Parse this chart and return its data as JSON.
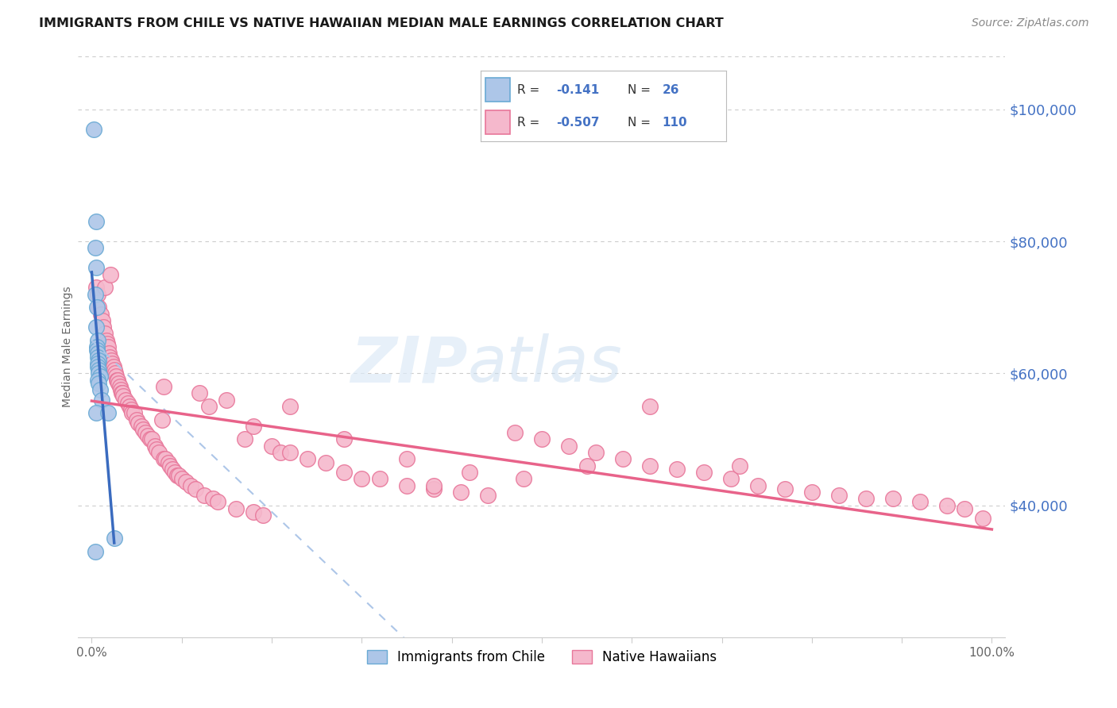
{
  "title": "IMMIGRANTS FROM CHILE VS NATIVE HAWAIIAN MEDIAN MALE EARNINGS CORRELATION CHART",
  "source": "Source: ZipAtlas.com",
  "ylabel": "Median Male Earnings",
  "yticks": [
    40000,
    60000,
    80000,
    100000
  ],
  "ytick_labels": [
    "$40,000",
    "$60,000",
    "$80,000",
    "$100,000"
  ],
  "legend_labels": [
    "Immigrants from Chile",
    "Native Hawaiians"
  ],
  "color_chile_fill": "#adc6e8",
  "color_chile_edge": "#6aaad4",
  "color_hawaii_fill": "#f5b8cc",
  "color_hawaii_edge": "#e8779a",
  "color_trendline_chile_solid": "#3a6bbf",
  "color_trendline_hawaii": "#e8638a",
  "color_trendline_chile_dashed": "#adc6e8",
  "background_color": "#ffffff",
  "chile_x": [
    0.002,
    0.005,
    0.004,
    0.005,
    0.004,
    0.006,
    0.005,
    0.007,
    0.006,
    0.006,
    0.007,
    0.007,
    0.008,
    0.007,
    0.007,
    0.008,
    0.008,
    0.009,
    0.007,
    0.008,
    0.009,
    0.011,
    0.005,
    0.018,
    0.025,
    0.004
  ],
  "chile_y": [
    97000,
    83000,
    79000,
    76000,
    72000,
    70000,
    67000,
    65000,
    64000,
    63500,
    63000,
    62500,
    62000,
    61500,
    61000,
    60500,
    60000,
    59500,
    59000,
    58500,
    57500,
    56000,
    54000,
    54000,
    35000,
    33000
  ],
  "hawaii_x": [
    0.005,
    0.007,
    0.008,
    0.01,
    0.012,
    0.013,
    0.015,
    0.015,
    0.016,
    0.017,
    0.018,
    0.019,
    0.02,
    0.021,
    0.022,
    0.023,
    0.024,
    0.025,
    0.026,
    0.027,
    0.028,
    0.029,
    0.03,
    0.031,
    0.032,
    0.033,
    0.034,
    0.035,
    0.038,
    0.04,
    0.042,
    0.044,
    0.045,
    0.047,
    0.05,
    0.052,
    0.055,
    0.057,
    0.06,
    0.062,
    0.065,
    0.067,
    0.07,
    0.072,
    0.075,
    0.078,
    0.08,
    0.082,
    0.085,
    0.087,
    0.09,
    0.092,
    0.095,
    0.097,
    0.1,
    0.105,
    0.11,
    0.115,
    0.12,
    0.125,
    0.13,
    0.135,
    0.14,
    0.15,
    0.16,
    0.17,
    0.18,
    0.19,
    0.2,
    0.21,
    0.22,
    0.24,
    0.26,
    0.28,
    0.3,
    0.32,
    0.35,
    0.38,
    0.41,
    0.44,
    0.47,
    0.5,
    0.53,
    0.56,
    0.59,
    0.62,
    0.65,
    0.68,
    0.71,
    0.74,
    0.77,
    0.8,
    0.83,
    0.86,
    0.89,
    0.92,
    0.95,
    0.97,
    0.99,
    0.22,
    0.35,
    0.42,
    0.18,
    0.28,
    0.08,
    0.55,
    0.38,
    0.48,
    0.62,
    0.72
  ],
  "hawaii_y": [
    73000,
    72000,
    70000,
    69000,
    68000,
    67000,
    73000,
    66000,
    65000,
    64500,
    64000,
    63000,
    62500,
    75000,
    62000,
    61500,
    61000,
    60500,
    60000,
    59500,
    59000,
    59000,
    58500,
    58000,
    57500,
    57000,
    57000,
    56500,
    56000,
    55500,
    55000,
    54500,
    54000,
    54000,
    53000,
    52500,
    52000,
    51500,
    51000,
    50500,
    50000,
    50000,
    49000,
    48500,
    48000,
    53000,
    47000,
    47000,
    46500,
    46000,
    45500,
    45000,
    44500,
    44500,
    44000,
    43500,
    43000,
    42500,
    57000,
    41500,
    55000,
    41000,
    40500,
    56000,
    39500,
    50000,
    39000,
    38500,
    49000,
    48000,
    55000,
    47000,
    46500,
    45000,
    44000,
    44000,
    43000,
    42500,
    42000,
    41500,
    51000,
    50000,
    49000,
    48000,
    47000,
    46000,
    45500,
    45000,
    44000,
    43000,
    42500,
    42000,
    41500,
    41000,
    41000,
    40500,
    40000,
    39500,
    38000,
    48000,
    47000,
    45000,
    52000,
    50000,
    58000,
    46000,
    43000,
    44000,
    55000,
    46000
  ]
}
